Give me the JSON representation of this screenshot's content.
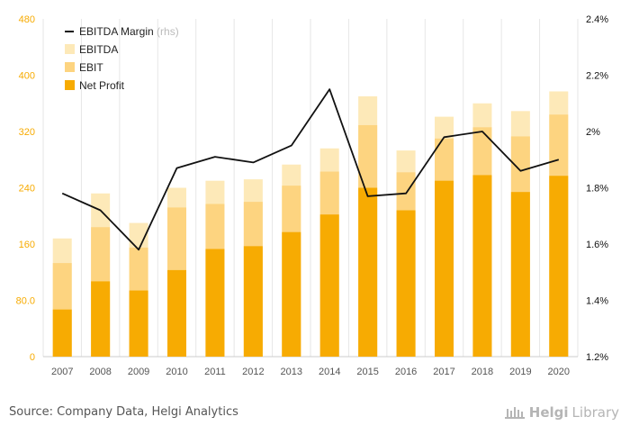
{
  "chart_data": {
    "type": "bar",
    "stacked_nested": true,
    "categories": [
      "2007",
      "2008",
      "2009",
      "2010",
      "2011",
      "2012",
      "2013",
      "2014",
      "2015",
      "2016",
      "2017",
      "2018",
      "2019",
      "2020"
    ],
    "series": [
      {
        "name": "EBITDA",
        "color": "#fde9b8",
        "values": [
          168,
          232,
          190,
          240,
          250,
          252,
          273,
          296,
          370,
          293,
          341,
          360,
          349,
          377
        ]
      },
      {
        "name": "EBIT",
        "color": "#fdd480",
        "values": [
          133,
          184,
          155,
          212,
          217,
          220,
          243,
          263,
          329,
          262,
          310,
          326,
          313,
          344
        ]
      },
      {
        "name": "Net Profit",
        "color": "#f7ab02",
        "values": [
          67,
          107,
          94,
          123,
          153,
          157,
          177,
          202,
          240,
          208,
          250,
          258,
          234,
          257
        ]
      },
      {
        "name": "EBITDA Margin",
        "name_suffix": "(rhs)",
        "type": "line",
        "axis": "right",
        "color": "#111111",
        "values": [
          1.78,
          1.72,
          1.58,
          1.87,
          1.91,
          1.89,
          1.95,
          2.15,
          1.77,
          1.78,
          1.98,
          2.0,
          1.86,
          1.9
        ]
      }
    ],
    "y_left": {
      "min": 0,
      "max": 480,
      "ticks": [
        "0",
        "80.0",
        "160",
        "240",
        "320",
        "400",
        "480"
      ]
    },
    "y_right": {
      "min": 1.2,
      "max": 2.4,
      "ticks": [
        "1.2%",
        "1.4%",
        "1.6%",
        "1.8%",
        "2%",
        "2.2%",
        "2.4%"
      ]
    },
    "legend_position": "top-left",
    "grid": "vertical"
  },
  "footer": {
    "source": "Source: Company Data, Helgi Analytics",
    "brand_a": "Helgi",
    "brand_b": "Library"
  }
}
